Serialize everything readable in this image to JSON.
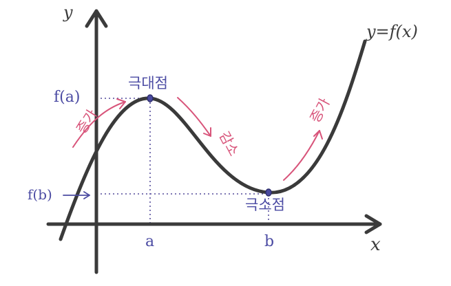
{
  "axes": {
    "x_label": "x",
    "y_label": "y"
  },
  "curve_label": "y=f(x)",
  "ticks": {
    "a": "a",
    "b": "b",
    "fa": "f(a)",
    "fb": "f(b)"
  },
  "points": {
    "max_label": "극대점",
    "min_label": "극소점"
  },
  "trends": {
    "increase_left": "증가",
    "decrease": "감소",
    "increase_right": "증가"
  },
  "colors": {
    "axis": "#3b3b3b",
    "curve": "#3a3a3a",
    "annotation_pink": "#d8547a",
    "label_blue": "#4b4ba3"
  }
}
